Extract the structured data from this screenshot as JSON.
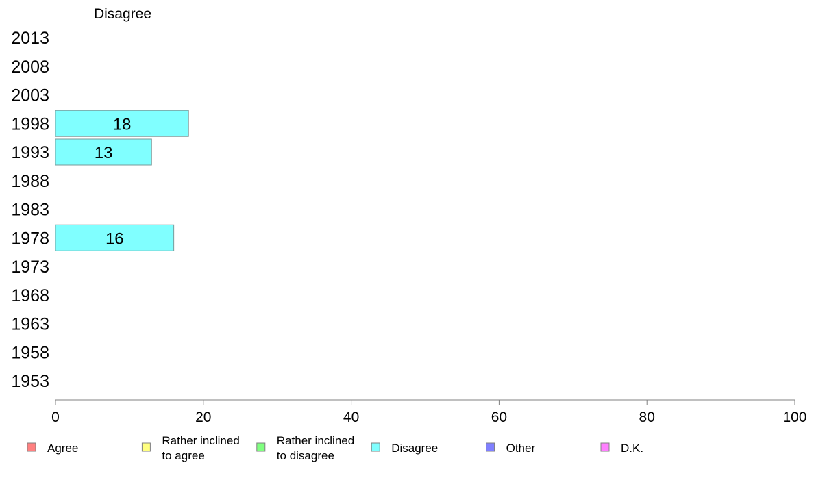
{
  "chart_data": {
    "type": "bar",
    "orientation": "horizontal",
    "title": "Disagree",
    "categories": [
      "2013",
      "2008",
      "2003",
      "1998",
      "1993",
      "1988",
      "1983",
      "1978",
      "1973",
      "1968",
      "1963",
      "1958",
      "1953"
    ],
    "series": [
      {
        "name": "Disagree",
        "color": "#80ffff",
        "values": [
          null,
          null,
          null,
          18,
          13,
          null,
          null,
          16,
          null,
          null,
          null,
          null,
          null
        ],
        "labels": [
          "",
          "",
          "",
          "18",
          "13",
          "",
          "",
          "16",
          "",
          "",
          "",
          "",
          ""
        ]
      }
    ],
    "xlim": [
      0,
      100
    ],
    "xticks": [
      0,
      20,
      40,
      60,
      80,
      100
    ],
    "grid": false,
    "legend_position": "bottom",
    "legend": [
      {
        "label": "Agree",
        "color": "#ff8080"
      },
      {
        "label": "Rather inclined\nto agree",
        "color": "#ffff80"
      },
      {
        "label": "Rather inclined\nto disagree",
        "color": "#80ff80"
      },
      {
        "label": "Disagree",
        "color": "#80ffff"
      },
      {
        "label": "Other",
        "color": "#8080ff"
      },
      {
        "label": "D.K.",
        "color": "#ff80ff"
      }
    ]
  }
}
